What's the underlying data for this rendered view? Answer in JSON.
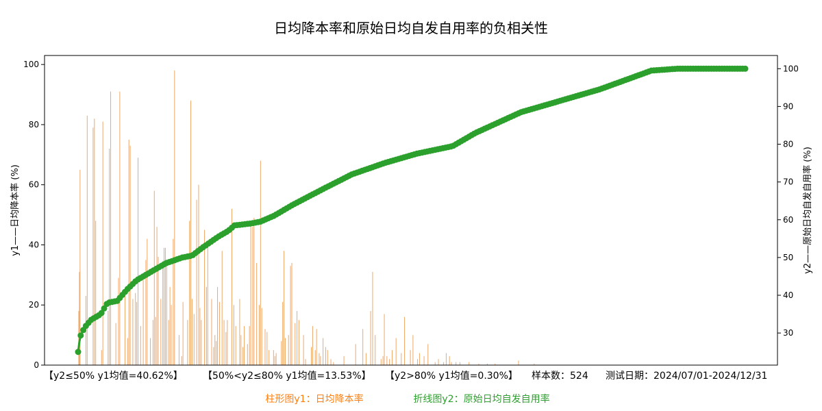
{
  "chart_data": {
    "type": "bar+line",
    "title": "日均降本率和原始日均自发自用率的负相关性",
    "ylabel_left": "y1——日均降本率 (%)",
    "ylabel_right": "y2——原始日均自发自用率 (%)",
    "xlabel": "",
    "ylim_left": [
      0,
      103
    ],
    "ylim_right": [
      21.5,
      103.5
    ],
    "yticks_left": [
      "0",
      "20",
      "40",
      "60",
      "80",
      "100"
    ],
    "yticks_right": [
      "30",
      "40",
      "50",
      "60",
      "70",
      "80",
      "90",
      "100"
    ],
    "grid": false,
    "sample_count": 524,
    "stats": {
      "group1": "【y2≤50%  y1均值=40.62%】",
      "group2": "【50%<y2≤80%  y1均值=13.53%】",
      "group3": "【y2>80%  y1均值=0.30%】",
      "sample_text": "样本数：524",
      "date_text": "测试日期：2024/07/01-2024/12/31"
    },
    "legend": {
      "bar": "柱形图y1：日均降本率",
      "line": "折线图y2：原始日均自发自用率"
    },
    "colors": {
      "bar": "#f0a868",
      "line": "#2ca02c",
      "bar_legend": "#ff7f0e",
      "line_legend": "#2ca02c"
    },
    "y2_anchors": [
      [
        0,
        25
      ],
      [
        3,
        29
      ],
      [
        10,
        31.5
      ],
      [
        20,
        33.5
      ],
      [
        35,
        35
      ],
      [
        45,
        38
      ],
      [
        60,
        38.5
      ],
      [
        75,
        41.5
      ],
      [
        90,
        44
      ],
      [
        110,
        46
      ],
      [
        135,
        48.5
      ],
      [
        160,
        50
      ],
      [
        175,
        50.5
      ],
      [
        190,
        52.5
      ],
      [
        215,
        55.5
      ],
      [
        230,
        57
      ],
      [
        240,
        58.5
      ],
      [
        265,
        59
      ],
      [
        280,
        59.5
      ],
      [
        300,
        61
      ],
      [
        330,
        64
      ],
      [
        380,
        68.5
      ],
      [
        420,
        72
      ],
      [
        470,
        75
      ],
      [
        520,
        77.5
      ],
      [
        575,
        79.5
      ],
      [
        610,
        83
      ],
      [
        680,
        88.5
      ],
      [
        740,
        91.5
      ],
      [
        800,
        94.5
      ],
      [
        840,
        97
      ],
      [
        880,
        99.5
      ],
      [
        920,
        100
      ],
      [
        1000,
        100
      ],
      [
        1024,
        100
      ]
    ],
    "y1_bars": [
      [
        1,
        18
      ],
      [
        2,
        31
      ],
      [
        3,
        65
      ],
      [
        12,
        23
      ],
      [
        14,
        83
      ],
      [
        23,
        79
      ],
      [
        25,
        82
      ],
      [
        27,
        48
      ],
      [
        36,
        5
      ],
      [
        38,
        81
      ],
      [
        46,
        18
      ],
      [
        48,
        72
      ],
      [
        50,
        91
      ],
      [
        58,
        14
      ],
      [
        62,
        29
      ],
      [
        64,
        91
      ],
      [
        72,
        23
      ],
      [
        76,
        9
      ],
      [
        78,
        75
      ],
      [
        80,
        73
      ],
      [
        84,
        22
      ],
      [
        88,
        24
      ],
      [
        90,
        21
      ],
      [
        92,
        69
      ],
      [
        96,
        13
      ],
      [
        100,
        30
      ],
      [
        104,
        35
      ],
      [
        106,
        42
      ],
      [
        111,
        9
      ],
      [
        115,
        15
      ],
      [
        117,
        58
      ],
      [
        119,
        16
      ],
      [
        121,
        46
      ],
      [
        123,
        36
      ],
      [
        127,
        22
      ],
      [
        130,
        33
      ],
      [
        132,
        39
      ],
      [
        134,
        39
      ],
      [
        136,
        33
      ],
      [
        139,
        15
      ],
      [
        141,
        26
      ],
      [
        143,
        20
      ],
      [
        146,
        42
      ],
      [
        148,
        98
      ],
      [
        155,
        10
      ],
      [
        159,
        3
      ],
      [
        161,
        21
      ],
      [
        168,
        15
      ],
      [
        171,
        48
      ],
      [
        173,
        88
      ],
      [
        175,
        22
      ],
      [
        178,
        17
      ],
      [
        182,
        55
      ],
      [
        185,
        60
      ],
      [
        187,
        19
      ],
      [
        189,
        15
      ],
      [
        194,
        45
      ],
      [
        197,
        26
      ],
      [
        199,
        41
      ],
      [
        205,
        22
      ],
      [
        208,
        6
      ],
      [
        210,
        10
      ],
      [
        212,
        8
      ],
      [
        214,
        26
      ],
      [
        217,
        21
      ],
      [
        221,
        38
      ],
      [
        224,
        15
      ],
      [
        227,
        11
      ],
      [
        229,
        15
      ],
      [
        236,
        52
      ],
      [
        239,
        20
      ],
      [
        242,
        13
      ],
      [
        248,
        22
      ],
      [
        250,
        10
      ],
      [
        253,
        6
      ],
      [
        255,
        13
      ],
      [
        260,
        7
      ],
      [
        263,
        13
      ],
      [
        265,
        47
      ],
      [
        268,
        46
      ],
      [
        270,
        49
      ],
      [
        274,
        34
      ],
      [
        278,
        20
      ],
      [
        280,
        68
      ],
      [
        282,
        19
      ],
      [
        287,
        12
      ],
      [
        290,
        11
      ],
      [
        293,
        5
      ],
      [
        300,
        5
      ],
      [
        302,
        3
      ],
      [
        304,
        4
      ],
      [
        312,
        8
      ],
      [
        314,
        21
      ],
      [
        316,
        38
      ],
      [
        318,
        9
      ],
      [
        323,
        10
      ],
      [
        326,
        33
      ],
      [
        328,
        34
      ],
      [
        333,
        14
      ],
      [
        336,
        18
      ],
      [
        339,
        15
      ],
      [
        346,
        10
      ],
      [
        349,
        2
      ],
      [
        358,
        6
      ],
      [
        360,
        13
      ],
      [
        364,
        5
      ],
      [
        366,
        12
      ],
      [
        370,
        4
      ],
      [
        372,
        3
      ],
      [
        376,
        9
      ],
      [
        380,
        6
      ],
      [
        383,
        5
      ],
      [
        388,
        2
      ],
      [
        392,
        1
      ],
      [
        408,
        3
      ],
      [
        426,
        7
      ],
      [
        437,
        12
      ],
      [
        442,
        4
      ],
      [
        449,
        18
      ],
      [
        452,
        31
      ],
      [
        456,
        10
      ],
      [
        465,
        2
      ],
      [
        468,
        3
      ],
      [
        470,
        17
      ],
      [
        474,
        3
      ],
      [
        478,
        2
      ],
      [
        482,
        5
      ],
      [
        488,
        9
      ],
      [
        496,
        4
      ],
      [
        501,
        16
      ],
      [
        510,
        5
      ],
      [
        514,
        10
      ],
      [
        521,
        2
      ],
      [
        524,
        4
      ],
      [
        531,
        3
      ],
      [
        537,
        7
      ],
      [
        548,
        1
      ],
      [
        553,
        2
      ],
      [
        561,
        1
      ],
      [
        565,
        4
      ],
      [
        570,
        3
      ],
      [
        573,
        1
      ],
      [
        580,
        1
      ],
      [
        586,
        1
      ],
      [
        600,
        1
      ],
      [
        615,
        0.5
      ],
      [
        628,
        0.5
      ],
      [
        640,
        0.5
      ],
      [
        676,
        1.5
      ],
      [
        700,
        0.5
      ]
    ]
  }
}
